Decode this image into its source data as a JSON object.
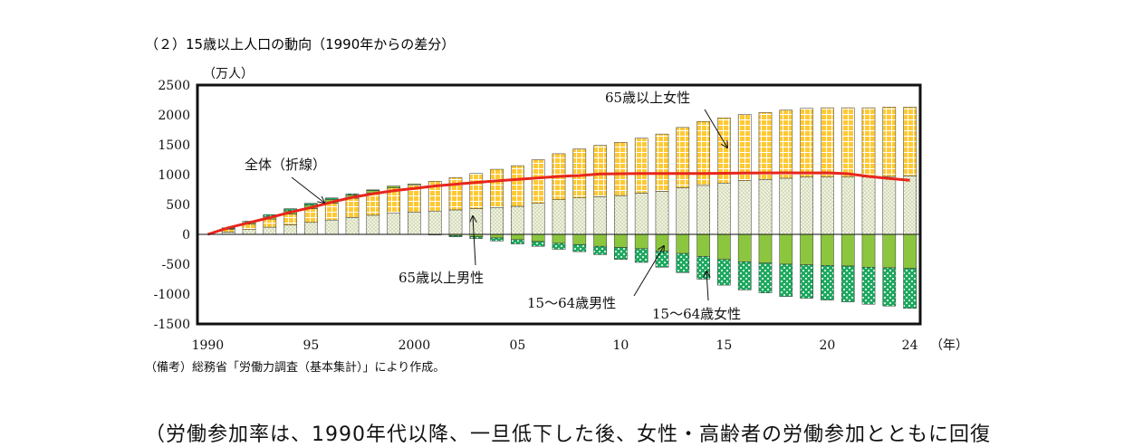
{
  "figure_title": "（２）15歳以上人口の動向（1990年からの差分）",
  "source_note": "（備考）総務省「労働力調査（基本集計）」により作成。",
  "body_text": "（労働参加率は、1990年代以降、一旦低下した後、女性・高齢者の労働参加とともに回復",
  "colors": {
    "female_65_plus": "#ffc933",
    "male_65_plus": "#e6ecd2",
    "male_15_64": "#8cc63f",
    "female_15_64": "#1ea860",
    "total_line": "#e8261c"
  },
  "chart_data": {
    "type": "bar",
    "stacked": true,
    "x": [
      1990,
      1991,
      1992,
      1993,
      1994,
      1995,
      1996,
      1997,
      1998,
      1999,
      2000,
      2001,
      2002,
      2003,
      2004,
      2005,
      2006,
      2007,
      2008,
      2009,
      2010,
      2011,
      2012,
      2013,
      2014,
      2015,
      2016,
      2017,
      2018,
      2019,
      2020,
      2021,
      2022,
      2023,
      2024
    ],
    "x_tick_labels": [
      "1990",
      "95",
      "2000",
      "05",
      "10",
      "15",
      "20",
      "24"
    ],
    "x_tick_years": [
      1990,
      1995,
      2000,
      2005,
      2010,
      2015,
      2020,
      2024
    ],
    "x_unit": "（年）",
    "y_unit": "（万人）",
    "ylim": [
      -1500,
      2500
    ],
    "y_ticks": [
      "2500",
      "2000",
      "1500",
      "1000",
      "500",
      "0",
      "-500",
      "-1000",
      "-1500"
    ],
    "series": [
      {
        "name": "65歳以上女性",
        "key": "female_65_plus",
        "values": [
          0,
          45,
          90,
          135,
          180,
          230,
          280,
          325,
          370,
          420,
          460,
          500,
          540,
          590,
          640,
          680,
          730,
          770,
          820,
          860,
          890,
          920,
          960,
          1010,
          1070,
          1090,
          1110,
          1120,
          1140,
          1150,
          1160,
          1160,
          1160,
          1160,
          1150
        ]
      },
      {
        "name": "65歳以上男性",
        "key": "male_65_plus",
        "values": [
          0,
          40,
          80,
          120,
          160,
          200,
          240,
          280,
          320,
          360,
          370,
          390,
          410,
          430,
          450,
          470,
          520,
          580,
          610,
          630,
          650,
          690,
          720,
          780,
          820,
          860,
          900,
          920,
          940,
          960,
          960,
          960,
          960,
          970,
          980
        ]
      },
      {
        "name": "15〜64歳男性",
        "key": "male_15_64",
        "values": [
          0,
          10,
          25,
          40,
          55,
          60,
          65,
          55,
          45,
          30,
          15,
          0,
          -20,
          -40,
          -60,
          -90,
          -120,
          -150,
          -170,
          -200,
          -220,
          -240,
          -280,
          -320,
          -370,
          -420,
          -460,
          -480,
          -500,
          -510,
          -520,
          -530,
          -550,
          -560,
          -570
        ]
      },
      {
        "name": "15〜64歳女性",
        "key": "female_15_64",
        "values": [
          0,
          15,
          25,
          35,
          35,
          30,
          25,
          20,
          10,
          0,
          0,
          -10,
          -20,
          -30,
          -50,
          -70,
          -80,
          -100,
          -120,
          -140,
          -200,
          -230,
          -270,
          -320,
          -380,
          -430,
          -470,
          -500,
          -540,
          -560,
          -580,
          -600,
          -620,
          -640,
          -670
        ]
      }
    ],
    "total_line": {
      "name": "全体（折線）",
      "values": [
        0,
        110,
        195,
        280,
        370,
        450,
        540,
        620,
        680,
        730,
        770,
        810,
        840,
        870,
        895,
        920,
        945,
        970,
        985,
        1010,
        1015,
        1020,
        1020,
        1018,
        1020,
        1023,
        1027,
        1029,
        1030,
        1029,
        1030,
        1015,
        970,
        935,
        905
      ]
    },
    "annotations": [
      "65歳以上女性",
      "全体（折線）",
      "65歳以上男性",
      "15〜64歳男性",
      "15〜64歳女性"
    ]
  }
}
